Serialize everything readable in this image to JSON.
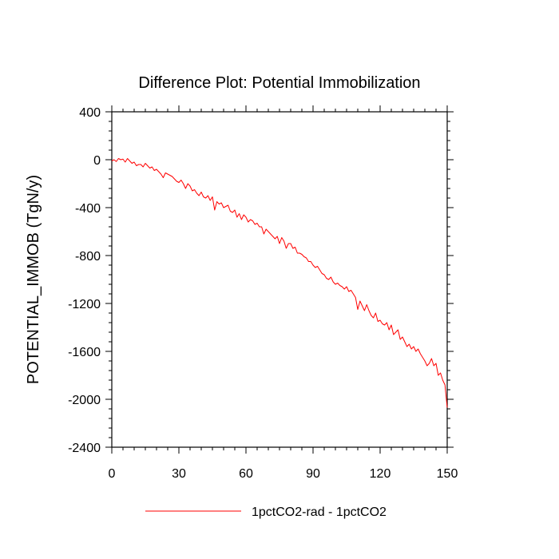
{
  "chart_data": {
    "type": "line",
    "title": "Difference Plot: Potential Immobilization",
    "xlabel": "",
    "ylabel": "POTENTIAL_IMMOB  (TgN/y)",
    "xlim": [
      0,
      150
    ],
    "ylim": [
      -2400,
      400
    ],
    "xticks": [
      0,
      30,
      60,
      90,
      120,
      150
    ],
    "yticks": [
      400,
      0,
      -400,
      -800,
      -1200,
      -1600,
      -2000,
      -2400
    ],
    "grid": false,
    "legend_position": "bottom",
    "series": [
      {
        "name": "1pctCO2-rad - 1pctCO2",
        "color": "#ff0000",
        "x": [
          0,
          1,
          2,
          3,
          4,
          5,
          6,
          7,
          8,
          9,
          10,
          11,
          12,
          13,
          14,
          15,
          16,
          17,
          18,
          19,
          20,
          21,
          22,
          23,
          24,
          25,
          26,
          27,
          28,
          29,
          30,
          31,
          32,
          33,
          34,
          35,
          36,
          37,
          38,
          39,
          40,
          41,
          42,
          43,
          44,
          45,
          46,
          47,
          48,
          49,
          50,
          51,
          52,
          53,
          54,
          55,
          56,
          57,
          58,
          59,
          60,
          61,
          62,
          63,
          64,
          65,
          66,
          67,
          68,
          69,
          70,
          71,
          72,
          73,
          74,
          75,
          76,
          77,
          78,
          79,
          80,
          81,
          82,
          83,
          84,
          85,
          86,
          87,
          88,
          89,
          90,
          91,
          92,
          93,
          94,
          95,
          96,
          97,
          98,
          99,
          100,
          101,
          102,
          103,
          104,
          105,
          106,
          107,
          108,
          109,
          110,
          111,
          112,
          113,
          114,
          115,
          116,
          117,
          118,
          119,
          120,
          121,
          122,
          123,
          124,
          125,
          126,
          127,
          128,
          129,
          130,
          131,
          132,
          133,
          134,
          135,
          136,
          137,
          138,
          139,
          140,
          141,
          142,
          143,
          144,
          145,
          146,
          147,
          148,
          149,
          150
        ],
        "y": [
          -10,
          0,
          -15,
          10,
          0,
          5,
          -20,
          10,
          -10,
          -30,
          -20,
          -50,
          -40,
          -40,
          -60,
          -30,
          -50,
          -70,
          -60,
          -90,
          -80,
          -100,
          -120,
          -150,
          -110,
          -120,
          -130,
          -140,
          -160,
          -180,
          -190,
          -170,
          -200,
          -240,
          -200,
          -220,
          -260,
          -250,
          -280,
          -300,
          -270,
          -310,
          -320,
          -300,
          -340,
          -310,
          -420,
          -350,
          -370,
          -360,
          -400,
          -390,
          -380,
          -430,
          -440,
          -420,
          -480,
          -450,
          -500,
          -460,
          -480,
          -520,
          -500,
          -510,
          -540,
          -530,
          -560,
          -560,
          -620,
          -580,
          -600,
          -620,
          -640,
          -660,
          -640,
          -700,
          -650,
          -680,
          -740,
          -700,
          -700,
          -740,
          -730,
          -780,
          -780,
          -790,
          -810,
          -820,
          -850,
          -850,
          -880,
          -900,
          -890,
          -920,
          -950,
          -960,
          -990,
          -1000,
          -980,
          -1020,
          -1040,
          -1030,
          -1050,
          -1060,
          -1080,
          -1060,
          -1100,
          -1090,
          -1120,
          -1150,
          -1250,
          -1180,
          -1220,
          -1260,
          -1210,
          -1260,
          -1300,
          -1320,
          -1280,
          -1350,
          -1340,
          -1370,
          -1380,
          -1360,
          -1420,
          -1380,
          -1460,
          -1440,
          -1420,
          -1500,
          -1480,
          -1520,
          -1560,
          -1540,
          -1580,
          -1560,
          -1600,
          -1580,
          -1620,
          -1650,
          -1680,
          -1720,
          -1700,
          -1660,
          -1720,
          -1700,
          -1800,
          -1780,
          -1840,
          -1880,
          -2070
        ]
      }
    ]
  }
}
